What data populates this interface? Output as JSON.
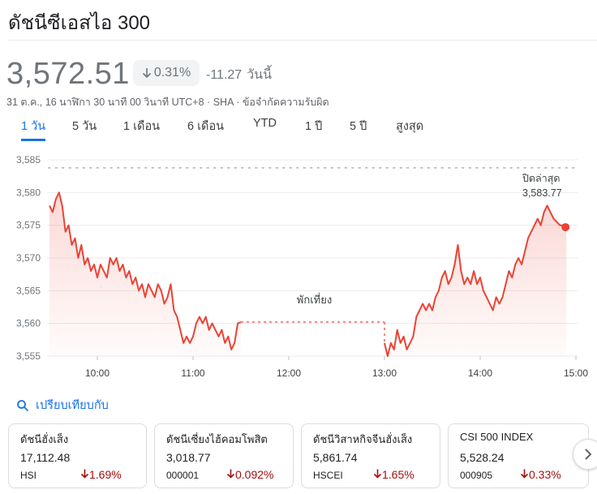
{
  "header": {
    "title": "ดัชนีซีเอสไอ 300"
  },
  "quote": {
    "price": "3,572.51",
    "change_pct": "0.31%",
    "change_abs": "-11.27",
    "change_period": "วันนี้",
    "meta_time": "31 ต.ค., 16 นาฬิกา 30 นาที 00 วินาที UTC+8",
    "meta_exchange": "SHA",
    "meta_disclaimer": "ข้อจำกัดความรับผิด",
    "meta_sep": "·"
  },
  "tabs": [
    {
      "label": "1 วัน",
      "active": true
    },
    {
      "label": "5 วัน",
      "active": false
    },
    {
      "label": "1 เดือน",
      "active": false
    },
    {
      "label": "6 เดือน",
      "active": false
    },
    {
      "label": "YTD",
      "active": false
    },
    {
      "label": "1 ปี",
      "active": false
    },
    {
      "label": "5 ปี",
      "active": false
    },
    {
      "label": "สูงสุด",
      "active": false
    }
  ],
  "chart_data": {
    "type": "line",
    "y_ticks": [
      "3,585",
      "3,580",
      "3,575",
      "3,570",
      "3,565",
      "3,560",
      "3,555"
    ],
    "y_tick_values": [
      3585,
      3580,
      3575,
      3570,
      3565,
      3560,
      3555
    ],
    "x_ticks": [
      "10:00",
      "11:00",
      "12:00",
      "13:00",
      "14:00",
      "15:00"
    ],
    "ylim": [
      3555,
      3585
    ],
    "grid": true,
    "prev_close_label": "ปิดล่าสุด",
    "prev_close_value_label": "3,583.77",
    "prev_close": 3583.77,
    "break_label": "พักเที่ยง",
    "last_value": 3574.7,
    "colors": {
      "line": "#ea4335",
      "fill": "#fce8e6",
      "grid": "#ebebeb",
      "dots": "#bdc1c6"
    },
    "series": [
      {
        "values": [
          [
            "09:30",
            3578
          ],
          [
            "09:32",
            3577
          ],
          [
            "09:34",
            3579
          ],
          [
            "09:36",
            3580
          ],
          [
            "09:38",
            3578
          ],
          [
            "09:40",
            3574
          ],
          [
            "09:42",
            3575
          ],
          [
            "09:44",
            3572
          ],
          [
            "09:46",
            3573
          ],
          [
            "09:48",
            3570
          ],
          [
            "09:50",
            3572
          ],
          [
            "09:52",
            3569
          ],
          [
            "09:54",
            3570
          ],
          [
            "09:56",
            3568
          ],
          [
            "09:58",
            3569
          ],
          [
            "10:00",
            3567
          ],
          [
            "10:02",
            3569
          ],
          [
            "10:04",
            3568
          ],
          [
            "10:06",
            3567
          ],
          [
            "10:08",
            3570
          ],
          [
            "10:10",
            3569
          ],
          [
            "10:12",
            3570
          ],
          [
            "10:14",
            3568
          ],
          [
            "10:16",
            3569
          ],
          [
            "10:18",
            3567
          ],
          [
            "10:20",
            3568
          ],
          [
            "10:22",
            3566
          ],
          [
            "10:24",
            3567
          ],
          [
            "10:26",
            3565
          ],
          [
            "10:28",
            3566
          ],
          [
            "10:30",
            3564
          ],
          [
            "10:32",
            3566
          ],
          [
            "10:34",
            3565
          ],
          [
            "10:36",
            3564
          ],
          [
            "10:38",
            3566
          ],
          [
            "10:40",
            3565
          ],
          [
            "10:42",
            3563
          ],
          [
            "10:44",
            3564
          ],
          [
            "10:46",
            3566
          ],
          [
            "10:48",
            3562
          ],
          [
            "10:50",
            3561
          ],
          [
            "10:52",
            3559
          ],
          [
            "10:54",
            3557
          ],
          [
            "10:56",
            3558
          ],
          [
            "10:58",
            3557
          ],
          [
            "11:00",
            3558
          ],
          [
            "11:02",
            3560
          ],
          [
            "11:04",
            3561
          ],
          [
            "11:06",
            3560
          ],
          [
            "11:08",
            3561
          ],
          [
            "11:10",
            3559
          ],
          [
            "11:12",
            3560
          ],
          [
            "11:14",
            3559
          ],
          [
            "11:16",
            3558
          ],
          [
            "11:18",
            3559
          ],
          [
            "11:20",
            3557
          ],
          [
            "11:22",
            3558
          ],
          [
            "11:24",
            3556
          ],
          [
            "11:26",
            3557
          ],
          [
            "11:28",
            3560
          ],
          [
            "11:30",
            3560.2
          ],
          [
            "13:00",
            3557
          ],
          [
            "13:02",
            3555
          ],
          [
            "13:04",
            3557
          ],
          [
            "13:06",
            3556
          ],
          [
            "13:08",
            3559
          ],
          [
            "13:10",
            3557
          ],
          [
            "13:12",
            3558
          ],
          [
            "13:14",
            3556
          ],
          [
            "13:16",
            3557
          ],
          [
            "13:18",
            3558
          ],
          [
            "13:20",
            3561
          ],
          [
            "13:22",
            3562
          ],
          [
            "13:24",
            3563
          ],
          [
            "13:26",
            3562
          ],
          [
            "13:28",
            3563
          ],
          [
            "13:30",
            3562
          ],
          [
            "13:32",
            3564
          ],
          [
            "13:34",
            3565
          ],
          [
            "13:36",
            3567
          ],
          [
            "13:38",
            3568
          ],
          [
            "13:40",
            3566
          ],
          [
            "13:42",
            3567
          ],
          [
            "13:44",
            3569
          ],
          [
            "13:46",
            3572
          ],
          [
            "13:48",
            3568
          ],
          [
            "13:50",
            3566
          ],
          [
            "13:52",
            3567
          ],
          [
            "13:54",
            3566
          ],
          [
            "13:56",
            3568
          ],
          [
            "13:58",
            3566
          ],
          [
            "14:00",
            3567
          ],
          [
            "14:02",
            3565
          ],
          [
            "14:04",
            3564
          ],
          [
            "14:06",
            3563
          ],
          [
            "14:08",
            3562
          ],
          [
            "14:10",
            3564
          ],
          [
            "14:12",
            3563
          ],
          [
            "14:14",
            3564
          ],
          [
            "14:16",
            3566
          ],
          [
            "14:18",
            3568
          ],
          [
            "14:20",
            3567
          ],
          [
            "14:22",
            3569
          ],
          [
            "14:24",
            3570
          ],
          [
            "14:26",
            3569
          ],
          [
            "14:28",
            3571
          ],
          [
            "14:30",
            3573
          ],
          [
            "14:32",
            3574
          ],
          [
            "14:34",
            3575
          ],
          [
            "14:36",
            3576
          ],
          [
            "14:38",
            3575
          ],
          [
            "14:40",
            3577
          ],
          [
            "14:42",
            3578
          ],
          [
            "14:44",
            3577
          ],
          [
            "14:46",
            3576
          ],
          [
            "14:48",
            3575.5
          ],
          [
            "14:50",
            3575
          ],
          [
            "14:52",
            3575
          ],
          [
            "14:54",
            3574.7
          ]
        ]
      }
    ]
  },
  "compare": {
    "label": "เปรียบเทียบกับ",
    "icon": "search-icon"
  },
  "cards": [
    {
      "name": "ดัชนีฮั่งเส็ง",
      "price": "17,112.48",
      "symbol": "HSI",
      "change": "1.69%"
    },
    {
      "name": "ดัชนีเซี่ยงไฮ้คอมโพสิต",
      "price": "3,018.77",
      "symbol": "000001",
      "change": "0.092%"
    },
    {
      "name": "ดัชนีวิสาหกิจจีนฮั่งเส็ง",
      "price": "5,861.74",
      "symbol": "HSCEI",
      "change": "1.65%"
    },
    {
      "name": "CSI 500 INDEX",
      "price": "5,528.24",
      "symbol": "000905",
      "change": "0.33%"
    }
  ]
}
